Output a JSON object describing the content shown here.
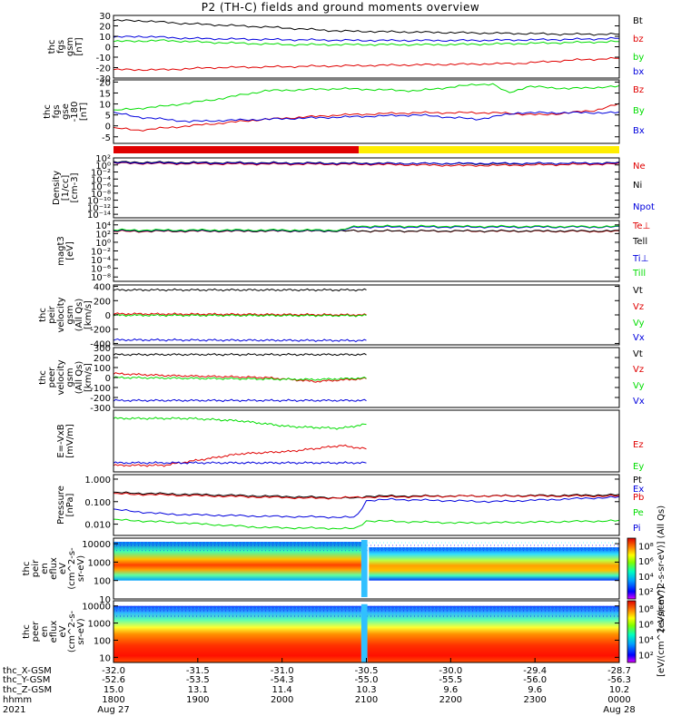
{
  "title": "P2 (TH-C) fields and ground moments overview",
  "colors": {
    "black": "#000000",
    "red": "#e00000",
    "green": "#00dd00",
    "blue": "#0000dd",
    "yellow": "#ffee00"
  },
  "chart_data": [
    {
      "type": "line",
      "id": "fgs",
      "ylabel": [
        "thc",
        "fgs",
        "gsm",
        "[nT]"
      ],
      "ylim": [
        -30,
        30
      ],
      "ticks": [
        30,
        20,
        10,
        0,
        -10,
        -20,
        -30
      ],
      "series": [
        {
          "name": "Bt",
          "color": "black",
          "x": [
            0,
            0.05,
            0.15,
            0.3,
            0.45,
            0.6,
            0.75,
            0.9,
            1
          ],
          "y": [
            25,
            25,
            22,
            19,
            15,
            14,
            13,
            12,
            12
          ]
        },
        {
          "name": "bz",
          "color": "red",
          "x": [
            0,
            0.1,
            0.2,
            0.35,
            0.5,
            0.65,
            0.8,
            0.9,
            1
          ],
          "y": [
            -22,
            -22,
            -20,
            -19,
            -18,
            -17,
            -16,
            -13,
            -11
          ]
        },
        {
          "name": "by",
          "color": "green",
          "x": [
            0,
            0.1,
            0.2,
            0.35,
            0.5,
            0.65,
            0.8,
            0.9,
            1
          ],
          "y": [
            5,
            6,
            4,
            2,
            2,
            2,
            3,
            4,
            5
          ]
        },
        {
          "name": "bx",
          "color": "blue",
          "x": [
            0,
            0.05,
            0.15,
            0.3,
            0.5,
            0.7,
            0.9,
            1
          ],
          "y": [
            9,
            10,
            8,
            7,
            6,
            6,
            7,
            8
          ]
        }
      ]
    },
    {
      "type": "line",
      "id": "fgs-gse",
      "ylabel": [
        "thc",
        "fgs",
        "gse",
        "-180",
        "[nT]"
      ],
      "ylim": [
        -8,
        21
      ],
      "ticks": [
        20,
        15,
        10,
        5,
        0,
        -5
      ],
      "series": [
        {
          "name": "Bz",
          "color": "red",
          "x": [
            0,
            0.05,
            0.15,
            0.3,
            0.45,
            0.6,
            0.75,
            0.85,
            0.95,
            1
          ],
          "y": [
            -1,
            -2,
            0,
            3,
            5,
            6,
            6,
            5,
            7,
            10
          ]
        },
        {
          "name": "By",
          "color": "green",
          "x": [
            0,
            0.1,
            0.2,
            0.3,
            0.45,
            0.6,
            0.72,
            0.75,
            0.78,
            0.82,
            0.9,
            1
          ],
          "y": [
            7,
            9,
            12,
            16,
            17,
            16,
            19,
            19,
            15,
            18,
            17,
            18
          ]
        },
        {
          "name": "Bx",
          "color": "blue",
          "x": [
            0,
            0.05,
            0.15,
            0.3,
            0.45,
            0.6,
            0.72,
            0.8,
            0.9,
            1
          ],
          "y": [
            6,
            4,
            2,
            3,
            4,
            5,
            3,
            6,
            6,
            6
          ]
        }
      ]
    },
    {
      "type": "line",
      "id": "density",
      "ylabel": [
        "Density",
        "[1/cc]",
        "[cm-3]"
      ],
      "ylim": [
        -15,
        2
      ],
      "log": true,
      "ticks": [
        2,
        0,
        -2,
        -4,
        -6,
        -8,
        -10,
        -12,
        -14
      ],
      "tick_labels": [
        "10²",
        "10⁰",
        "10⁻²",
        "10⁻⁴",
        "10⁻⁶",
        "10⁻⁸",
        "10⁻¹⁰",
        "10⁻¹²",
        "10⁻¹⁴"
      ],
      "series": [
        {
          "name": "Ne",
          "color": "red",
          "x": [
            0,
            0.2,
            0.5,
            0.7,
            1
          ],
          "y": [
            0.5,
            0.3,
            0.2,
            -0.2,
            0.3
          ]
        },
        {
          "name": "Ni",
          "color": "black",
          "x": [
            0,
            0.3,
            0.5,
            0.75,
            1
          ],
          "y": [
            0.8,
            0.6,
            0.5,
            0.3,
            0.6
          ]
        },
        {
          "name": "Npot",
          "color": "blue",
          "x": [
            0,
            0.5,
            1
          ],
          "y": [
            0.6,
            0.4,
            0.5
          ]
        }
      ]
    },
    {
      "type": "line",
      "id": "temperature",
      "ylabel": [
        "magt3",
        "[eV]"
      ],
      "ylim": [
        -9,
        5
      ],
      "log": true,
      "ticks": [
        4,
        2,
        0,
        -2,
        -4,
        -6,
        -8
      ],
      "tick_labels": [
        "10⁴",
        "10²",
        "10⁰",
        "10⁻²",
        "10⁻⁴",
        "10⁻⁶",
        "10⁻⁸"
      ],
      "series": [
        {
          "name": "Te⊥",
          "color": "red",
          "x": [
            0,
            0.45,
            1
          ],
          "y": [
            2.5,
            2.6,
            2.5
          ]
        },
        {
          "name": "Tell",
          "color": "black",
          "x": [
            0,
            1
          ],
          "y": [
            2.6,
            2.6
          ]
        },
        {
          "name": "Ti⊥",
          "color": "blue",
          "x": [
            0,
            0.45,
            0.48,
            1
          ],
          "y": [
            2.7,
            2.7,
            3.5,
            3.5
          ]
        },
        {
          "name": "Till",
          "color": "green",
          "x": [
            0,
            0.45,
            0.48,
            1
          ],
          "y": [
            2.8,
            2.8,
            3.7,
            3.6
          ]
        }
      ]
    },
    {
      "type": "line",
      "id": "peir-vel",
      "ylabel": [
        "thc",
        "peir",
        "velocity",
        "gsm",
        "(All Qs)",
        "[km/s]"
      ],
      "ylim": [
        -420,
        420
      ],
      "ticks": [
        400,
        200,
        0,
        -200,
        -400
      ],
      "series": [
        {
          "name": "Vt",
          "color": "black",
          "x": [
            0,
            0.5
          ],
          "y": [
            350,
            350
          ]
        },
        {
          "name": "Vz",
          "color": "red",
          "x": [
            0,
            0.5
          ],
          "y": [
            15,
            0
          ]
        },
        {
          "name": "Vy",
          "color": "green",
          "x": [
            0,
            0.5
          ],
          "y": [
            -5,
            -10
          ]
        },
        {
          "name": "Vx",
          "color": "blue",
          "x": [
            0,
            0.5
          ],
          "y": [
            -350,
            -360
          ]
        }
      ]
    },
    {
      "type": "line",
      "id": "peer-vel",
      "ylabel": [
        "thc",
        "peer",
        "velocity",
        "gsm",
        "(All Qs)",
        "[km/s]"
      ],
      "ylim": [
        -300,
        300
      ],
      "ticks": [
        300,
        200,
        100,
        0,
        -100,
        -200,
        -300
      ],
      "series": [
        {
          "name": "Vt",
          "color": "black",
          "x": [
            0,
            0.5
          ],
          "y": [
            230,
            230
          ]
        },
        {
          "name": "Vz",
          "color": "red",
          "x": [
            0,
            0.1,
            0.3,
            0.4,
            0.5
          ],
          "y": [
            40,
            20,
            0,
            -40,
            -10
          ]
        },
        {
          "name": "Vy",
          "color": "green",
          "x": [
            0,
            0.2,
            0.4,
            0.5
          ],
          "y": [
            0,
            -10,
            -20,
            -5
          ]
        },
        {
          "name": "Vx",
          "color": "blue",
          "x": [
            0,
            0.5
          ],
          "y": [
            -230,
            -230
          ]
        }
      ]
    },
    {
      "type": "line",
      "id": "efield",
      "ylabel": [
        "E=-VxB",
        "[mV/m]"
      ],
      "ylim": [
        0,
        7.5
      ],
      "ticks": [],
      "series": [
        {
          "name": "Ez",
          "color": "red",
          "x": [
            0,
            0.1,
            0.25,
            0.35,
            0.45,
            0.5
          ],
          "y": [
            0.8,
            0.8,
            2.2,
            2.5,
            3.2,
            2.8
          ]
        },
        {
          "name": "Ey",
          "color": "green",
          "x": [
            0,
            0.15,
            0.25,
            0.35,
            0.45,
            0.5
          ],
          "y": [
            6.5,
            6.5,
            6.2,
            5.5,
            5.3,
            5.8
          ]
        },
        {
          "name": "Ex",
          "color": "blue",
          "x": [
            0,
            0.5
          ],
          "y": [
            1.1,
            1.1
          ]
        }
      ]
    },
    {
      "type": "line",
      "id": "pressure",
      "ylabel": [
        "Pressure",
        "[nPa]"
      ],
      "ylim": [
        -2.5,
        0.2
      ],
      "log": true,
      "ticks": [
        0,
        -1,
        -2
      ],
      "tick_labels": [
        "1.000",
        "0.100",
        "0.010"
      ],
      "series": [
        {
          "name": "Pt",
          "color": "black",
          "x": [
            0,
            0.2,
            0.4,
            0.48,
            0.5,
            0.7,
            1
          ],
          "y": [
            -0.6,
            -0.7,
            -0.8,
            -0.85,
            -0.75,
            -0.75,
            -0.7
          ]
        },
        {
          "name": "Pb",
          "color": "red",
          "x": [
            0,
            0.2,
            0.4,
            0.5,
            0.7,
            1
          ],
          "y": [
            -0.65,
            -0.75,
            -0.85,
            -0.8,
            -0.75,
            -0.75
          ]
        },
        {
          "name": "Pe",
          "color": "green",
          "x": [
            0,
            0.1,
            0.3,
            0.48,
            0.5,
            0.7,
            1
          ],
          "y": [
            -1.8,
            -1.9,
            -2.15,
            -2.2,
            -1.85,
            -1.95,
            -1.85
          ]
        },
        {
          "name": "Pi",
          "color": "blue",
          "x": [
            0,
            0.1,
            0.3,
            0.48,
            0.5,
            0.55,
            0.75,
            1
          ],
          "y": [
            -1.35,
            -1.55,
            -1.65,
            -1.7,
            -0.95,
            -0.9,
            -1.0,
            -0.8
          ]
        }
      ]
    },
    {
      "type": "heatmap",
      "id": "peir-eflux",
      "ylabel": [
        "thc",
        "peir",
        "en",
        "eflux",
        "eV",
        "(cm^2-s-",
        "sr-eV)"
      ],
      "ylim": [
        1,
        4.3
      ],
      "ticks": [
        4,
        3,
        2,
        1
      ],
      "tick_labels": [
        "10000",
        "1000",
        "100",
        "10"
      ]
    },
    {
      "type": "heatmap",
      "id": "peer-eflux",
      "ylabel": [
        "thc",
        "peer",
        "en",
        "eflux",
        "eV",
        "(cm^2-s-",
        "sr-eV)"
      ],
      "ylim": [
        0.7,
        4.3
      ],
      "ticks": [
        4,
        3,
        2,
        1
      ],
      "tick_labels": [
        "10000",
        "1000",
        "100",
        "10"
      ]
    }
  ],
  "colorbar_upper": {
    "labels": [
      "10⁸",
      "10⁶",
      "10⁴",
      "10²"
    ],
    "title": "[eV/(cm^2-s-sr-eV)] (All Qs)"
  },
  "colorbar_lower": {
    "labels": [
      "10⁸",
      "10⁶",
      "10⁴",
      "10²"
    ],
    "title": "[eV/(cm^2-s-sr-eV)]"
  },
  "footer": {
    "rows": [
      {
        "label": "thc_X-GSM",
        "values": [
          "-32.0",
          "-31.5",
          "-31.0",
          "-30.5",
          "-30.0",
          "-29.4",
          "-28.7"
        ]
      },
      {
        "label": "thc_Y-GSM",
        "values": [
          "-52.6",
          "-53.5",
          "-54.3",
          "-55.0",
          "-55.5",
          "-56.0",
          "-56.3"
        ]
      },
      {
        "label": "thc_Z-GSM",
        "values": [
          "15.0",
          "13.1",
          "11.4",
          "10.3",
          "9.6",
          "9.6",
          "10.2"
        ]
      },
      {
        "label": "hhmm",
        "values": [
          "1800",
          "1900",
          "2000",
          "2100",
          "2200",
          "2300",
          "0000"
        ]
      },
      {
        "label": "2021",
        "values": [
          "Aug 27",
          "",
          "",
          "",
          "",
          "",
          "Aug 28"
        ]
      }
    ]
  }
}
